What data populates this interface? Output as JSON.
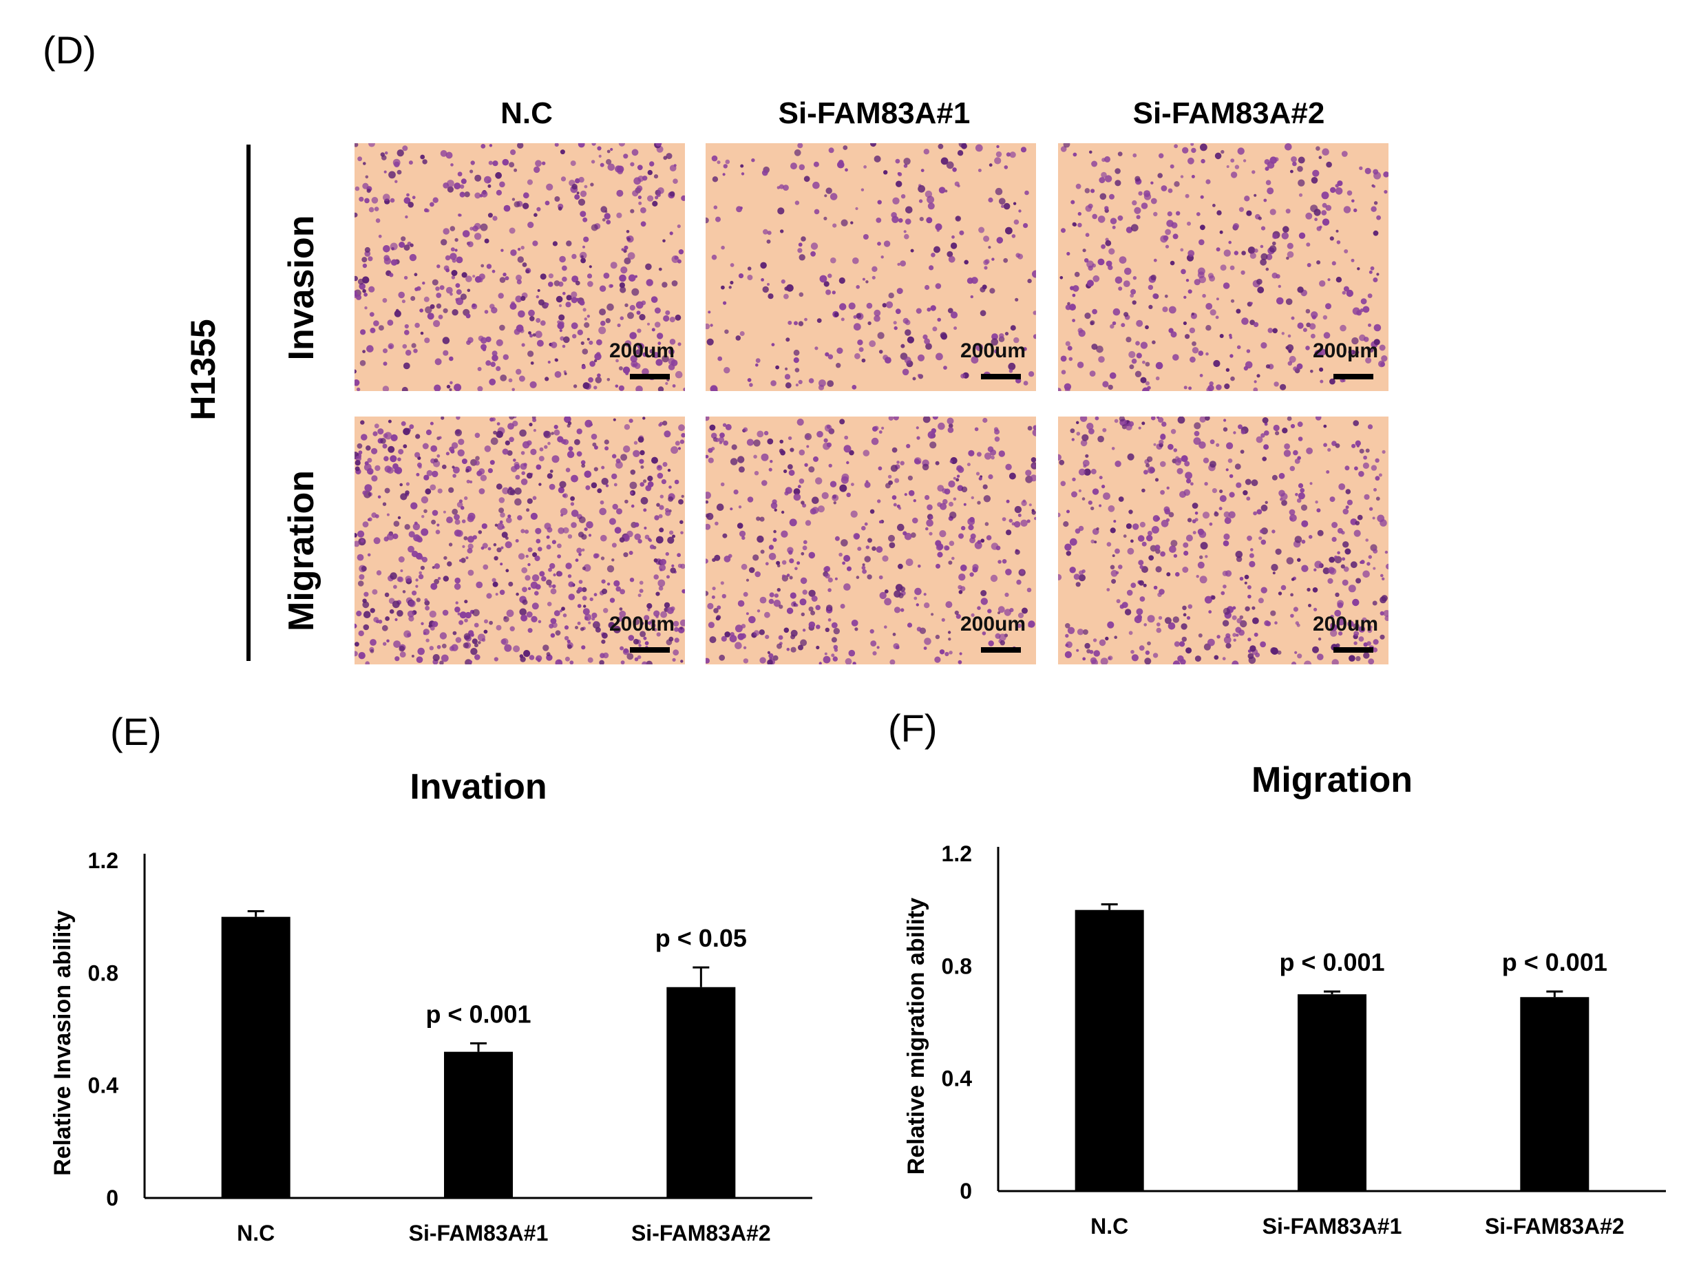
{
  "panel_d": {
    "letter": "(D)",
    "columns": [
      "N.C",
      "Si-FAM83A#1",
      "Si-FAM83A#2"
    ],
    "cell_line": "H1355",
    "rows": [
      "Invasion",
      "Migration"
    ],
    "scale_label": "200um",
    "scale_label_alt": "200μm",
    "colors": {
      "background": "#f6c9a6",
      "cells": "#8a3f9c",
      "cells_dark": "#5e2275"
    },
    "cell_density": [
      [
        0.62,
        0.35,
        0.48
      ],
      [
        0.85,
        0.58,
        0.6
      ]
    ]
  },
  "panel_e": {
    "letter": "(E)"
  },
  "panel_f": {
    "letter": "(F)"
  },
  "chart_data": [
    {
      "type": "bar",
      "title": "Invation",
      "ylabel": "Relative Invasion ability",
      "xlabel": "",
      "categories": [
        "N.C",
        "Si-FAM83A#1",
        "Si-FAM83A#2"
      ],
      "values": [
        1.0,
        0.52,
        0.75
      ],
      "errors": [
        0.02,
        0.03,
        0.07
      ],
      "annotations": [
        "",
        "p < 0.001",
        "p < 0.05"
      ],
      "ylim": [
        0,
        1.2
      ],
      "yticks": [
        "0",
        "0.4",
        "0.8",
        "1.2"
      ],
      "bar_color": "#000000",
      "grid": false
    },
    {
      "type": "bar",
      "title": "Migration",
      "ylabel": "Relative migration ability",
      "xlabel": "",
      "categories": [
        "N.C",
        "Si-FAM83A#1",
        "Si-FAM83A#2"
      ],
      "values": [
        1.0,
        0.7,
        0.69
      ],
      "errors": [
        0.02,
        0.01,
        0.02
      ],
      "annotations": [
        "",
        "p < 0.001",
        "p < 0.001"
      ],
      "ylim": [
        0,
        1.2
      ],
      "yticks": [
        "0",
        "0.4",
        "0.8",
        "1.2"
      ],
      "bar_color": "#000000",
      "grid": false
    }
  ]
}
